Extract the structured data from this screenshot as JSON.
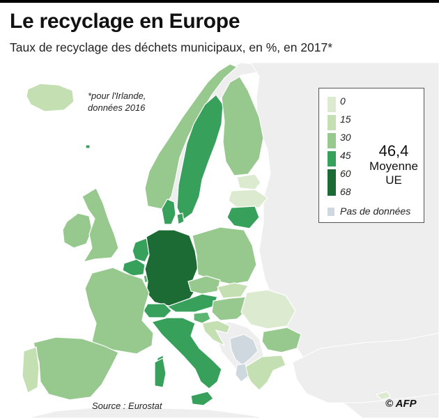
{
  "header": {
    "title": "Le recyclage en Europe",
    "subtitle": "Taux de recyclage des déchets municipaux, en %, en 2017*"
  },
  "note": {
    "line1": "*pour l'Irlande,",
    "line2": "données 2016"
  },
  "legend": {
    "ticks": [
      "0",
      "15",
      "30",
      "45",
      "60",
      "68"
    ],
    "colors": [
      "#dcebd0",
      "#c4dfb1",
      "#97c98f",
      "#5cb570",
      "#37a05b",
      "#1c6b35"
    ],
    "eu_average_value": "46,4",
    "eu_average_label_1": "Moyenne",
    "eu_average_label_2": "UE",
    "no_data_label": "Pas de données",
    "no_data_color": "#cfd8df"
  },
  "footer": {
    "source": "Source : Eurostat",
    "credit": "© AFP"
  },
  "map_colors": {
    "background_land": "#eeeeee",
    "border": "#ffffff"
  }
}
